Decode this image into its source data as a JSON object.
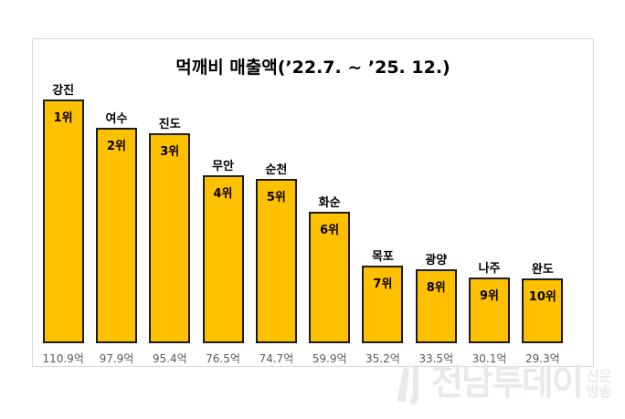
{
  "chart_data": {
    "type": "bar",
    "title": "먹깨비 매출액(’22.7. ~ ’25. 12.)",
    "categories": [
      "강진",
      "여수",
      "진도",
      "무안",
      "순천",
      "화순",
      "목포",
      "광양",
      "나주",
      "완도"
    ],
    "values": [
      110.9,
      97.9,
      95.4,
      76.5,
      74.7,
      59.9,
      35.2,
      33.5,
      30.1,
      29.3
    ],
    "rank_labels": [
      "1위",
      "2위",
      "3위",
      "4위",
      "5위",
      "6위",
      "7위",
      "8위",
      "9위",
      "10위"
    ],
    "value_labels": [
      "110.9억",
      "97.9억",
      "95.4억",
      "76.5억",
      "74.7억",
      "59.9억",
      "35.2억",
      "33.5억",
      "30.1억",
      "29.3억"
    ],
    "unit": "억",
    "xlabel": "",
    "ylabel": "",
    "ylim": [
      0,
      110.9
    ],
    "grid": false,
    "legend": false,
    "bar_color": "#FFC000",
    "bar_border_color": "#1c1c1c"
  },
  "watermark": {
    "text": "전남투데이",
    "sub_lines": [
      "신문",
      "방송"
    ],
    "color": "#e9e9e6"
  },
  "colors": {
    "background": "#ffffff",
    "frame_border": "#d9d9d9",
    "title_text": "#000000",
    "value_text": "#595959"
  }
}
